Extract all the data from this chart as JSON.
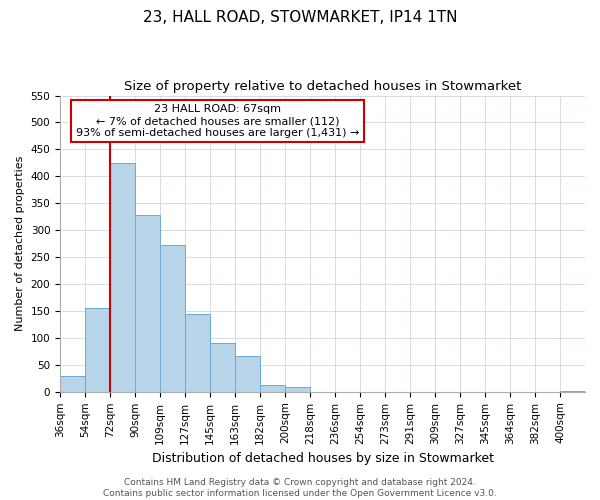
{
  "title": "23, HALL ROAD, STOWMARKET, IP14 1TN",
  "subtitle": "Size of property relative to detached houses in Stowmarket",
  "xlabel": "Distribution of detached houses by size in Stowmarket",
  "ylabel": "Number of detached properties",
  "bar_labels": [
    "36sqm",
    "54sqm",
    "72sqm",
    "90sqm",
    "109sqm",
    "127sqm",
    "145sqm",
    "163sqm",
    "182sqm",
    "200sqm",
    "218sqm",
    "236sqm",
    "254sqm",
    "273sqm",
    "291sqm",
    "309sqm",
    "327sqm",
    "345sqm",
    "364sqm",
    "382sqm",
    "400sqm"
  ],
  "bar_heights": [
    30,
    155,
    425,
    328,
    273,
    145,
    90,
    67,
    12,
    9,
    0,
    0,
    0,
    0,
    0,
    0,
    0,
    0,
    0,
    0,
    2
  ],
  "bar_color": "#b8d4e8",
  "bar_edge_color": "#6aaad4",
  "vline_x_index": 2.0,
  "ylim": [
    0,
    550
  ],
  "yticks": [
    0,
    50,
    100,
    150,
    200,
    250,
    300,
    350,
    400,
    450,
    500,
    550
  ],
  "annotation_title": "23 HALL ROAD: 67sqm",
  "annotation_line1": "← 7% of detached houses are smaller (112)",
  "annotation_line2": "93% of semi-detached houses are larger (1,431) →",
  "annotation_box_color": "#ffffff",
  "annotation_box_edge_color": "#cc0000",
  "vline_color": "#cc0000",
  "footer_line1": "Contains HM Land Registry data © Crown copyright and database right 2024.",
  "footer_line2": "Contains public sector information licensed under the Open Government Licence v3.0.",
  "title_fontsize": 11,
  "subtitle_fontsize": 9.5,
  "xlabel_fontsize": 9,
  "ylabel_fontsize": 8,
  "tick_fontsize": 7.5,
  "annotation_fontsize": 8,
  "footer_fontsize": 6.5,
  "grid_color": "#ccd8e8"
}
